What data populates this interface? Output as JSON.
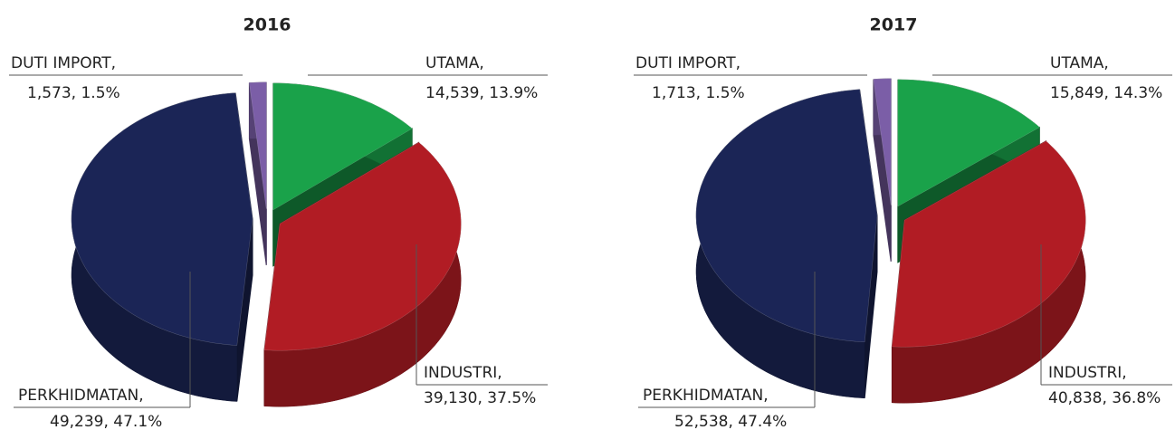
{
  "chart_data": [
    {
      "type": "pie",
      "title": "2016",
      "categories": [
        "UTAMA,",
        "INDUSTRI,",
        "PERKHIDMATAN,",
        "DUTI IMPORT,"
      ],
      "values": [
        14539,
        39130,
        49239,
        1573
      ],
      "value_labels": [
        "14,539, 13.9%",
        "39,130, 37.5%",
        "49,239, 47.1%",
        "1,573, 1.5%"
      ],
      "colors": [
        "#1aa24a",
        "#b11c24",
        "#1b2556",
        "#7b5ea7"
      ]
    },
    {
      "type": "pie",
      "title": "2017",
      "categories": [
        "UTAMA,",
        "INDUSTRI,",
        "PERKHIDMATAN,",
        "DUTI IMPORT,"
      ],
      "values": [
        15849,
        40838,
        52538,
        1713
      ],
      "value_labels": [
        "15,849, 14.3%",
        "40,838, 36.8%",
        "52,538, 47.4%",
        "1,713, 1.5%"
      ],
      "colors": [
        "#1aa24a",
        "#b11c24",
        "#1b2556",
        "#7b5ea7"
      ]
    }
  ]
}
